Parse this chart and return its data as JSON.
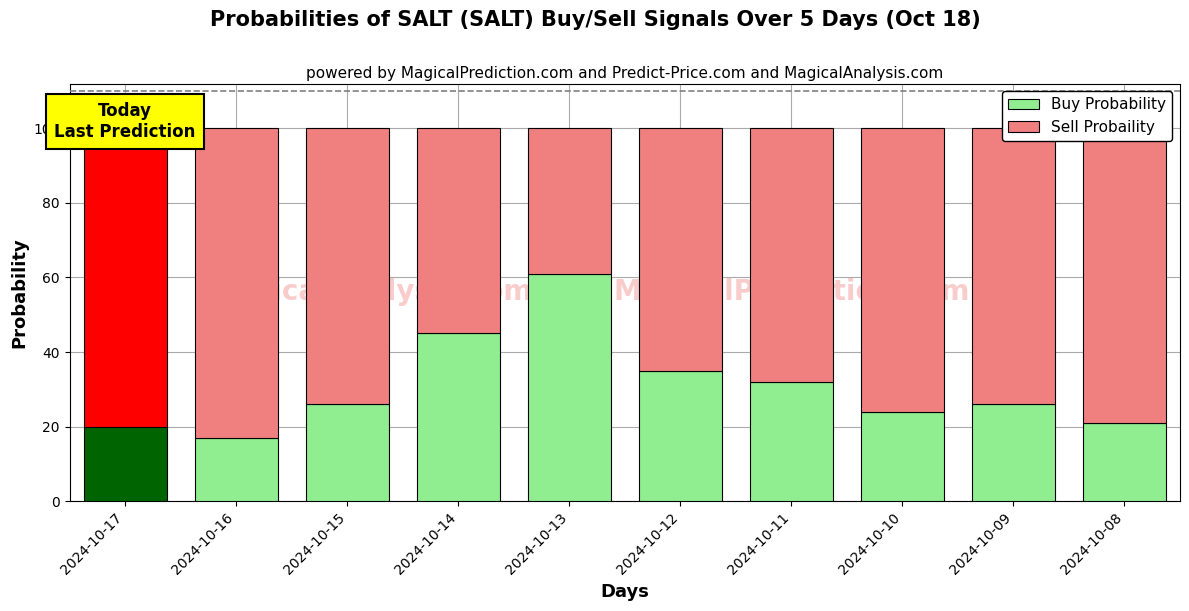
{
  "title": "Probabilities of SALT (SALT) Buy/Sell Signals Over 5 Days (Oct 18)",
  "subtitle": "powered by MagicalPrediction.com and Predict-Price.com and MagicalAnalysis.com",
  "xlabel": "Days",
  "ylabel": "Probability",
  "dates": [
    "2024-10-17",
    "2024-10-16",
    "2024-10-15",
    "2024-10-14",
    "2024-10-13",
    "2024-10-12",
    "2024-10-11",
    "2024-10-10",
    "2024-10-09",
    "2024-10-08"
  ],
  "buy_values": [
    20,
    17,
    26,
    45,
    61,
    35,
    32,
    24,
    26,
    21
  ],
  "sell_values": [
    80,
    83,
    74,
    55,
    39,
    65,
    68,
    76,
    74,
    79
  ],
  "today_bar_buy_color": "#006400",
  "today_bar_sell_color": "#ff0000",
  "other_bar_buy_color": "#90EE90",
  "other_bar_sell_color": "#F08080",
  "bar_edge_color": "#000000",
  "ylim": [
    0,
    112
  ],
  "yticks": [
    0,
    20,
    40,
    60,
    80,
    100
  ],
  "dashed_line_y": 110,
  "watermark_text1": "MagicalAnalysis.com",
  "watermark_text2": "MagicalPrediction.com",
  "watermark_color": "#F08080",
  "watermark_alpha": 0.4,
  "grid_color": "#aaaaaa",
  "annotation_text": "Today\nLast Prediction",
  "annotation_bg": "#ffff00",
  "legend_buy_label": "Buy Probability",
  "legend_sell_label": "Sell Probaility",
  "title_fontsize": 15,
  "subtitle_fontsize": 11,
  "axis_label_fontsize": 13,
  "tick_fontsize": 10,
  "fig_width": 12,
  "fig_height": 6,
  "bar_width": 0.75
}
